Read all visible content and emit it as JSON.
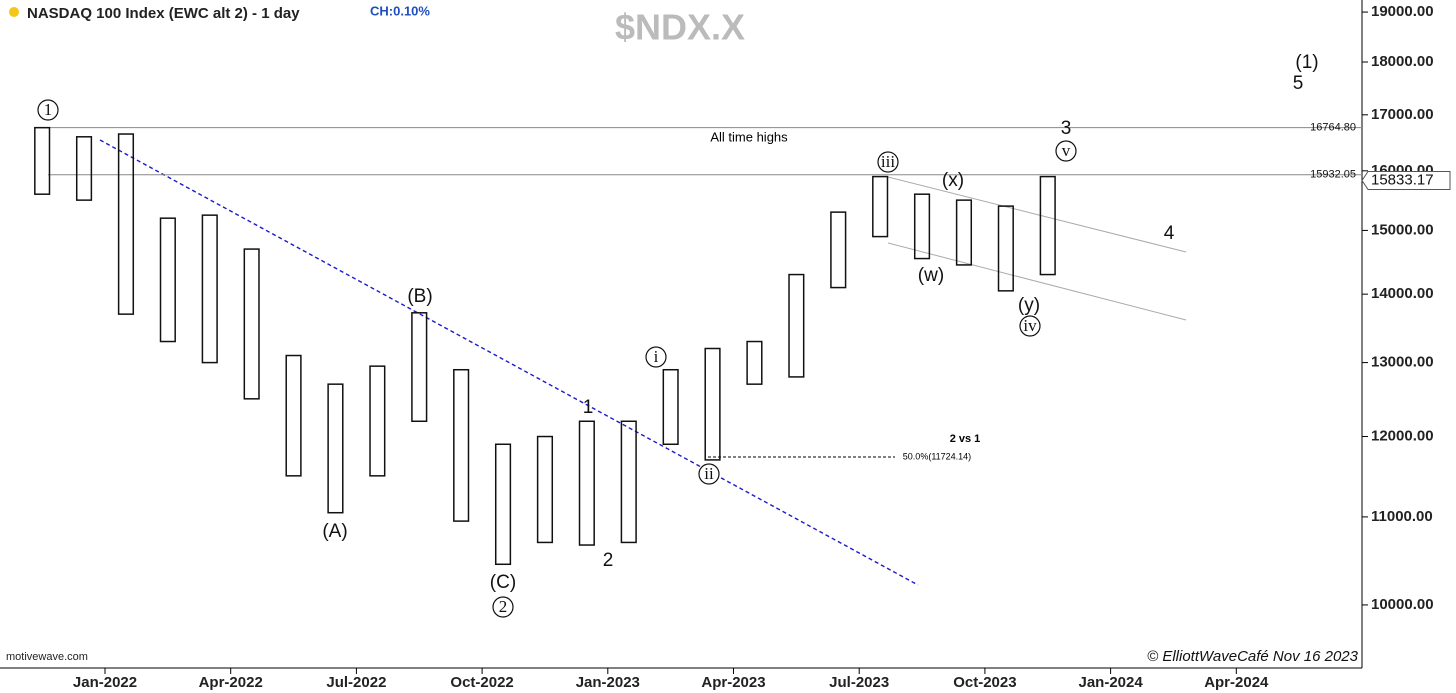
{
  "chart_data": {
    "type": "ohlc-range",
    "title": "NASDAQ 100 Index (EWC alt 2) - 1 day",
    "change": "CH:0.10%",
    "symbol": "$NDX.X",
    "source": "motivewave.com",
    "credit": "© ElliottWaveCafé Nov 16 2023",
    "color": "#111111",
    "log_scale": true,
    "x": [
      "2021-11",
      "2021-12",
      "2022-01",
      "2022-02",
      "2022-03",
      "2022-04",
      "2022-05",
      "2022-06",
      "2022-07",
      "2022-08",
      "2022-09",
      "2022-10",
      "2022-11",
      "2022-12",
      "2023-01",
      "2023-02",
      "2023-03",
      "2023-04",
      "2023-05",
      "2023-06",
      "2023-07",
      "2023-08",
      "2023-09",
      "2023-10",
      "2023-11"
    ],
    "series": [
      {
        "name": "High",
        "values": [
          16765,
          16600,
          16650,
          15200,
          15250,
          14700,
          13100,
          12700,
          12950,
          13720,
          12900,
          11900,
          12000,
          12200,
          12200,
          12900,
          13200,
          13300,
          14300,
          15300,
          15900,
          15600,
          15500,
          15400,
          15900
        ]
      },
      {
        "name": "Low",
        "values": [
          15600,
          15500,
          13700,
          13300,
          13000,
          12500,
          11500,
          11050,
          11500,
          12200,
          10950,
          10450,
          10700,
          10670,
          10700,
          11900,
          11700,
          12700,
          12800,
          14100,
          14900,
          14550,
          14450,
          14050,
          14300
        ]
      }
    ],
    "xlim": [
      "2021-10",
      "2024-07"
    ],
    "xticks": [
      {
        "value": "2022-01",
        "label": "Jan-2022"
      },
      {
        "value": "2022-04",
        "label": "Apr-2022"
      },
      {
        "value": "2022-07",
        "label": "Jul-2022"
      },
      {
        "value": "2022-10",
        "label": "Oct-2022"
      },
      {
        "value": "2023-01",
        "label": "Jan-2023"
      },
      {
        "value": "2023-04",
        "label": "Apr-2023"
      },
      {
        "value": "2023-07",
        "label": "Jul-2023"
      },
      {
        "value": "2023-10",
        "label": "Oct-2023"
      },
      {
        "value": "2024-01",
        "label": "Jan-2024"
      },
      {
        "value": "2024-04",
        "label": "Apr-2024"
      }
    ],
    "ylim": [
      9340,
      19250
    ],
    "yticks": [
      {
        "value": 10000,
        "label": "10000.00"
      },
      {
        "value": 11000,
        "label": "11000.00"
      },
      {
        "value": 12000,
        "label": "12000.00"
      },
      {
        "value": 13000,
        "label": "13000.00"
      },
      {
        "value": 14000,
        "label": "14000.00"
      },
      {
        "value": 15000,
        "label": "15000.00"
      },
      {
        "value": 16000,
        "label": "16000.00"
      },
      {
        "value": 17000,
        "label": "17000.00"
      },
      {
        "value": 18000,
        "label": "18000.00"
      },
      {
        "value": 19000,
        "label": "19000.00"
      }
    ],
    "levels": [
      {
        "value": 16764.8,
        "label": "16764.80"
      },
      {
        "value": 15932.05,
        "label": "15932.05"
      }
    ],
    "last_price": {
      "value": 15833.17,
      "label": "15833.17"
    },
    "annotations": [
      "1",
      "(B)",
      "(A)",
      "(C)",
      "2",
      "2",
      "1",
      "i",
      "ii",
      "iii",
      "(x)",
      "(w)",
      "(y)",
      "iv",
      "v",
      "3",
      "4",
      "5",
      "(1)",
      "All time highs",
      "2 vs 1",
      "50.0%(11724.14)"
    ]
  }
}
